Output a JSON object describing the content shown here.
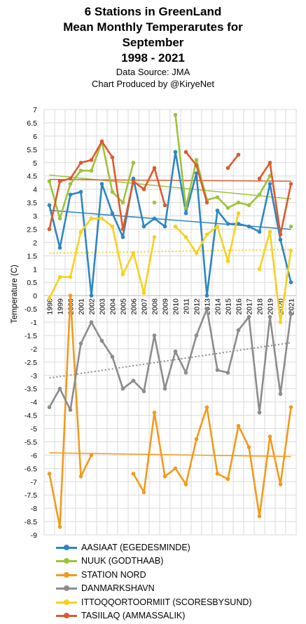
{
  "chart_data": {
    "type": "line",
    "title_lines": [
      "6 Stations in GreenLand",
      "Mean Monthly Temperarutes for",
      "September",
      "1998 - 2021"
    ],
    "subtitle_lines": [
      "Data Source: JMA",
      "Chart  Produced by @KiryeNet"
    ],
    "ylabel": "Temperature (C)",
    "ylim": [
      -9,
      7
    ],
    "ytick_step": 0.5,
    "grid": true,
    "legend_position": "bottom",
    "x": [
      1998,
      1999,
      2000,
      2001,
      2002,
      2003,
      2004,
      2005,
      2006,
      2007,
      2008,
      2009,
      2010,
      2011,
      2012,
      2013,
      2014,
      2015,
      2016,
      2017,
      2018,
      2019,
      2020,
      2021
    ],
    "x_tick_labels": [
      "1998",
      "1999",
      "2000",
      "2001",
      "2002",
      "2003",
      "2004",
      "2005",
      "2006",
      "2007",
      "2008",
      "2009",
      "2010",
      "2011",
      "2012",
      "2013",
      "2014",
      "2015",
      "2016",
      "2017",
      "2018",
      "2019",
      "2020",
      "2021"
    ],
    "series": [
      {
        "name": "AASIAAT (EGEDESMINDE)",
        "color": "#2e86c1",
        "trend": true,
        "values": [
          3.4,
          1.8,
          3.8,
          3.9,
          0.0,
          4.2,
          3.1,
          2.2,
          4.4,
          2.6,
          2.9,
          2.6,
          5.4,
          3.1,
          4.6,
          0.0,
          3.2,
          2.7,
          2.7,
          2.6,
          2.4,
          4.2,
          2.1,
          0.5
        ]
      },
      {
        "name": "NUUK (GODTHAAB)",
        "color": "#9dc33b",
        "trend": true,
        "values": [
          4.3,
          2.9,
          4.2,
          4.7,
          4.7,
          5.8,
          3.9,
          3.5,
          5.0,
          null,
          3.5,
          null,
          6.8,
          3.3,
          5.1,
          3.6,
          3.7,
          3.3,
          3.5,
          3.4,
          3.8,
          4.5,
          null,
          2.6
        ]
      },
      {
        "name": "STATION NORD",
        "color": "#f29a1c",
        "trend": true,
        "values": [
          -6.7,
          -8.7,
          0.0,
          -6.8,
          -6.0,
          null,
          null,
          null,
          -6.7,
          -7.4,
          -4.4,
          -6.8,
          -6.5,
          -7.1,
          -5.4,
          -4.2,
          -6.7,
          -6.9,
          -4.9,
          -5.7,
          -8.3,
          -5.3,
          -7.1,
          -4.2
        ]
      },
      {
        "name": "DANMARKSHAVN",
        "color": "#8c8c8c",
        "trend": true,
        "values": [
          -4.2,
          -3.5,
          -4.3,
          -1.8,
          -1.0,
          -1.7,
          -2.3,
          -3.5,
          -3.2,
          -3.6,
          -1.5,
          -3.5,
          -2.1,
          -2.9,
          -1.5,
          -0.5,
          -2.8,
          -2.9,
          -1.3,
          -0.8,
          -4.4,
          -0.8,
          -3.7,
          -0.7
        ]
      },
      {
        "name": "ITTOQQORTOORMIIT (SCORESBYSUND)",
        "color": "#f7d11e",
        "trend": true,
        "values": [
          -0.1,
          0.7,
          0.7,
          2.4,
          2.9,
          2.9,
          2.6,
          0.8,
          1.6,
          0.1,
          2.2,
          null,
          2.6,
          2.2,
          1.6,
          2.3,
          2.6,
          1.3,
          3.1,
          null,
          1.0,
          2.4,
          -1.0,
          1.7
        ]
      },
      {
        "name": "TASIILAQ (AMMASSALIK)",
        "color": "#dd5a2f",
        "trend": true,
        "values": [
          2.5,
          4.3,
          4.4,
          5.0,
          5.1,
          5.8,
          5.2,
          2.5,
          4.3,
          4.0,
          4.8,
          3.4,
          null,
          5.4,
          4.9,
          3.5,
          null,
          4.8,
          5.3,
          null,
          4.4,
          5.0,
          2.3,
          4.2
        ]
      }
    ]
  }
}
